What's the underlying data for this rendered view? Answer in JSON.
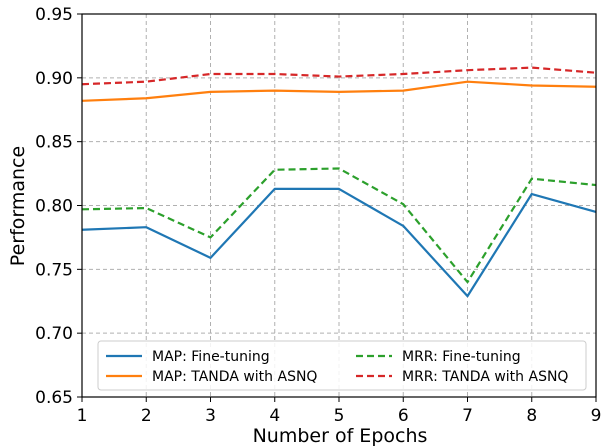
{
  "chart_data": {
    "type": "line",
    "xlabel": "Number of Epochs",
    "ylabel": "Performance",
    "x": [
      1,
      2,
      3,
      4,
      5,
      6,
      7,
      8,
      9
    ],
    "xlim": [
      1,
      9
    ],
    "ylim": [
      0.65,
      0.95
    ],
    "xticks": [
      "1",
      "2",
      "3",
      "4",
      "5",
      "6",
      "7",
      "8",
      "9"
    ],
    "yticks": [
      "0.65",
      "0.70",
      "0.75",
      "0.80",
      "0.85",
      "0.90",
      "0.95"
    ],
    "ytick_values": [
      0.65,
      0.7,
      0.75,
      0.8,
      0.85,
      0.9,
      0.95
    ],
    "grid": true,
    "legend_position": "bottom-center",
    "series": [
      {
        "name": "MAP: Fine-tuning",
        "color": "#1f77b4",
        "style": "solid",
        "values": [
          0.781,
          0.783,
          0.759,
          0.813,
          0.813,
          0.784,
          0.729,
          0.809,
          0.795
        ]
      },
      {
        "name": "MAP: TANDA with ASNQ",
        "color": "#ff7f0e",
        "style": "solid",
        "values": [
          0.882,
          0.884,
          0.889,
          0.89,
          0.889,
          0.89,
          0.897,
          0.894,
          0.893
        ]
      },
      {
        "name": "MRR: Fine-tuning",
        "color": "#2ca02c",
        "style": "dashed",
        "values": [
          0.797,
          0.798,
          0.775,
          0.828,
          0.829,
          0.801,
          0.74,
          0.821,
          0.816
        ]
      },
      {
        "name": "MRR: TANDA with ASNQ",
        "color": "#d62728",
        "style": "dashed",
        "values": [
          0.895,
          0.897,
          0.903,
          0.903,
          0.901,
          0.903,
          0.906,
          0.908,
          0.904
        ]
      }
    ]
  }
}
